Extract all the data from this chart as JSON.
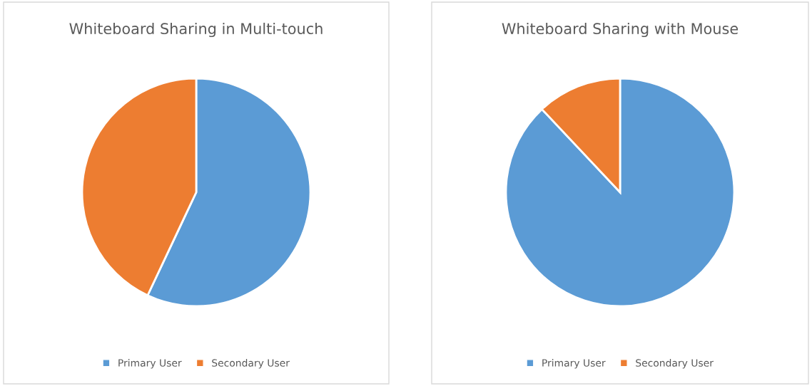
{
  "chart_data": [
    {
      "type": "pie",
      "title": "Whiteboard Sharing in Multi-touch",
      "categories": [
        "Primary User",
        "Secondary User"
      ],
      "values": [
        57,
        43
      ],
      "colors": [
        "#5b9bd5",
        "#ed7d31"
      ],
      "legend": "bottom"
    },
    {
      "type": "pie",
      "title": "Whiteboard Sharing with Mouse",
      "categories": [
        "Primary User",
        "Secondary User"
      ],
      "values": [
        88,
        12
      ],
      "colors": [
        "#5b9bd5",
        "#ed7d31"
      ],
      "legend": "bottom"
    }
  ]
}
